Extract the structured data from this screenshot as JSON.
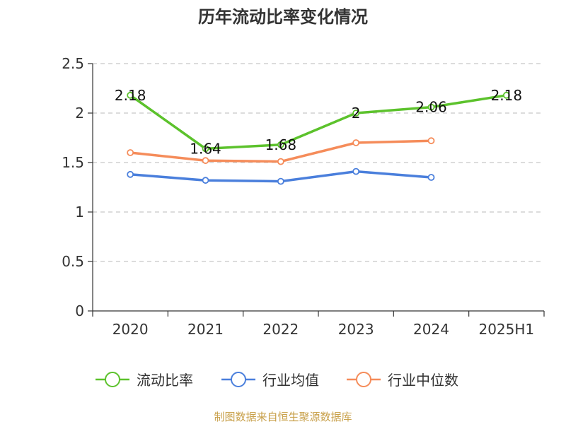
{
  "chart_data": {
    "type": "line",
    "title": "历年流动比率变化情况",
    "categories": [
      "2020",
      "2021",
      "2022",
      "2023",
      "2024",
      "2025H1"
    ],
    "ylim": [
      0,
      2.5
    ],
    "yticks": [
      "0",
      "0.5",
      "1",
      "1.5",
      "2",
      "2.5"
    ],
    "grid": true,
    "legend_position": "bottom",
    "series": [
      {
        "name": "流动比率",
        "color": "#5cc22c",
        "values": [
          2.18,
          1.64,
          1.68,
          2.0,
          2.06,
          2.18
        ],
        "labels": [
          "2.18",
          "1.64",
          "1.68",
          "2",
          "2.06",
          "2.18"
        ]
      },
      {
        "name": "行业均值",
        "color": "#4a7fdc",
        "values": [
          1.38,
          1.32,
          1.31,
          1.41,
          1.35,
          null
        ]
      },
      {
        "name": "行业中位数",
        "color": "#f58c5a",
        "values": [
          1.6,
          1.52,
          1.51,
          1.7,
          1.72,
          null
        ]
      }
    ]
  },
  "source": "制图数据来自恒生聚源数据库"
}
